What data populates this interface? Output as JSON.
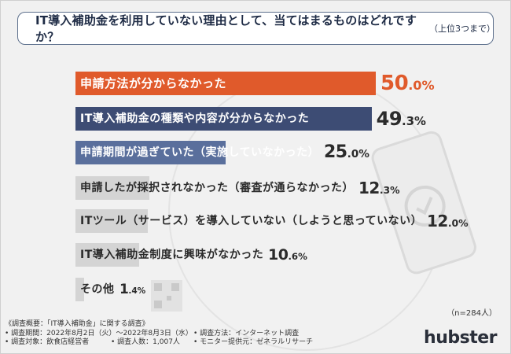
{
  "question": {
    "main": "IT導入補助金を利用していない理由として、当てはまるものはどれですか？",
    "sub": "（上位3つまで）"
  },
  "chart_data": {
    "type": "bar",
    "orientation": "horizontal",
    "title": "IT導入補助金を利用していない理由として、当てはまるものはどれですか？（上位3つまで）",
    "unit": "%",
    "xlim": [
      0,
      50
    ],
    "categories": [
      "申請方法が分からなかった",
      "IT導入補助金の種類や内容が分からなかった",
      "申請期間が過ぎていた（実施していなかった）",
      "申請したが採択されなかった（審査が通らなかった）",
      "ITツール（サービス）を導入していない（しようと思っていない）",
      "IT導入補助金制度に興味がなかった",
      "その他"
    ],
    "values": [
      50.0,
      49.3,
      25.0,
      12.3,
      12.0,
      10.6,
      1.4
    ],
    "value_labels": [
      {
        "int": "50",
        "dec": ".0%"
      },
      {
        "int": "49",
        "dec": ".3%"
      },
      {
        "int": "25",
        "dec": ".0%"
      },
      {
        "int": "12",
        "dec": ".3%"
      },
      {
        "int": "12",
        "dec": ".0%"
      },
      {
        "int": "10",
        "dec": ".6%"
      },
      {
        "int": "1",
        "dec": ".4%"
      }
    ],
    "colors": [
      "#e05a2b",
      "#3d4c74",
      "#5a6f9c",
      "#d4d4d4",
      "#d4d4d4",
      "#d4d4d4",
      "#d4d4d4"
    ]
  },
  "sample_note": "（n=284人）",
  "footer": {
    "title": "《調査概要：「IT導入補助金」に関する調査》",
    "period": "• 調査期間：2022年8月2日（火）～2022年8月3日（水）",
    "method": "• 調査方法：インターネット調査",
    "target": "• 調査対象：飲食店経営者",
    "count": "• 調査人数：1,007人",
    "provider": "• モニター提供元：ゼネラルリサーチ"
  },
  "brand": "hubster"
}
